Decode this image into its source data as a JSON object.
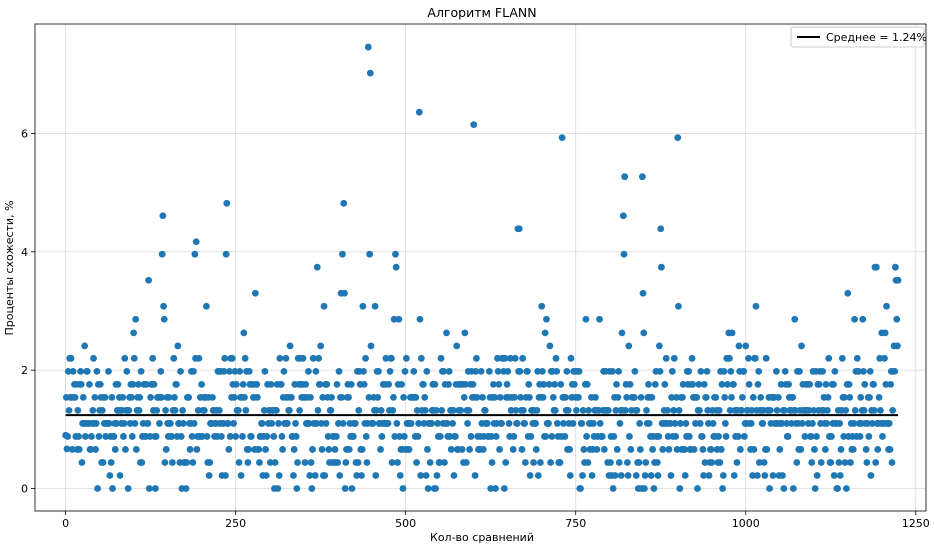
{
  "chart_data": {
    "type": "scatter",
    "title": "Алгоритм FLANN",
    "xlabel": "Кол-во сравнений",
    "ylabel": "Проценты схожести, %",
    "xlim": [
      -45,
      1265
    ],
    "ylim": [
      -0.38,
      7.85
    ],
    "xticks": [
      0,
      250,
      500,
      750,
      1000,
      1250
    ],
    "yticks": [
      0,
      2,
      4,
      6
    ],
    "grid": true,
    "legend_position": "top-right",
    "colors": {
      "points": "#1f77b4",
      "mean_line": "#000000",
      "grid": "#d9d9d9"
    },
    "mean_line": {
      "label": "Среднее = 1.24%",
      "y": 1.24,
      "x_range": [
        0,
        1224
      ]
    },
    "n_points": 1225,
    "highlight_points": [
      {
        "x": 0,
        "y": 0.9
      },
      {
        "x": 2,
        "y": 0.67
      },
      {
        "x": 4,
        "y": 1.98
      },
      {
        "x": 8,
        "y": 2.2
      },
      {
        "x": 28,
        "y": 2.41
      },
      {
        "x": 47,
        "y": 0.0
      },
      {
        "x": 100,
        "y": 2.63
      },
      {
        "x": 103,
        "y": 2.86
      },
      {
        "x": 122,
        "y": 3.52
      },
      {
        "x": 142,
        "y": 3.96
      },
      {
        "x": 143,
        "y": 4.61
      },
      {
        "x": 144,
        "y": 3.08
      },
      {
        "x": 145,
        "y": 2.86
      },
      {
        "x": 165,
        "y": 2.41
      },
      {
        "x": 177,
        "y": 0.0
      },
      {
        "x": 190,
        "y": 3.96
      },
      {
        "x": 192,
        "y": 4.17
      },
      {
        "x": 207,
        "y": 3.08
      },
      {
        "x": 236,
        "y": 3.96
      },
      {
        "x": 237,
        "y": 4.82
      },
      {
        "x": 262,
        "y": 2.63
      },
      {
        "x": 279,
        "y": 3.3
      },
      {
        "x": 307,
        "y": 0.0
      },
      {
        "x": 312,
        "y": 0.0
      },
      {
        "x": 330,
        "y": 2.41
      },
      {
        "x": 362,
        "y": 0.0
      },
      {
        "x": 370,
        "y": 3.74
      },
      {
        "x": 375,
        "y": 2.41
      },
      {
        "x": 380,
        "y": 3.08
      },
      {
        "x": 405,
        "y": 3.3
      },
      {
        "x": 407,
        "y": 3.96
      },
      {
        "x": 409,
        "y": 4.82
      },
      {
        "x": 410,
        "y": 3.3
      },
      {
        "x": 437,
        "y": 3.08
      },
      {
        "x": 445,
        "y": 7.46
      },
      {
        "x": 447,
        "y": 3.96
      },
      {
        "x": 448,
        "y": 7.02
      },
      {
        "x": 449,
        "y": 2.41
      },
      {
        "x": 455,
        "y": 3.08
      },
      {
        "x": 483,
        "y": 2.86
      },
      {
        "x": 485,
        "y": 3.96
      },
      {
        "x": 486,
        "y": 3.74
      },
      {
        "x": 490,
        "y": 2.86
      },
      {
        "x": 520,
        "y": 6.36
      },
      {
        "x": 521,
        "y": 2.86
      },
      {
        "x": 560,
        "y": 2.63
      },
      {
        "x": 575,
        "y": 2.41
      },
      {
        "x": 587,
        "y": 2.63
      },
      {
        "x": 600,
        "y": 6.15
      },
      {
        "x": 625,
        "y": 0.0
      },
      {
        "x": 665,
        "y": 4.39
      },
      {
        "x": 667,
        "y": 4.39
      },
      {
        "x": 700,
        "y": 3.08
      },
      {
        "x": 705,
        "y": 2.63
      },
      {
        "x": 707,
        "y": 2.86
      },
      {
        "x": 712,
        "y": 2.41
      },
      {
        "x": 730,
        "y": 5.93
      },
      {
        "x": 765,
        "y": 2.86
      },
      {
        "x": 785,
        "y": 2.86
      },
      {
        "x": 818,
        "y": 2.63
      },
      {
        "x": 820,
        "y": 4.61
      },
      {
        "x": 821,
        "y": 3.96
      },
      {
        "x": 822,
        "y": 5.27
      },
      {
        "x": 828,
        "y": 2.41
      },
      {
        "x": 848,
        "y": 5.27
      },
      {
        "x": 849,
        "y": 3.3
      },
      {
        "x": 850,
        "y": 2.63
      },
      {
        "x": 865,
        "y": 0.0
      },
      {
        "x": 873,
        "y": 2.41
      },
      {
        "x": 875,
        "y": 4.39
      },
      {
        "x": 876,
        "y": 3.74
      },
      {
        "x": 900,
        "y": 5.93
      },
      {
        "x": 901,
        "y": 3.08
      },
      {
        "x": 903,
        "y": 0.0
      },
      {
        "x": 975,
        "y": 2.63
      },
      {
        "x": 980,
        "y": 2.63
      },
      {
        "x": 990,
        "y": 2.41
      },
      {
        "x": 1000,
        "y": 2.41
      },
      {
        "x": 1015,
        "y": 3.08
      },
      {
        "x": 1035,
        "y": 0.0
      },
      {
        "x": 1070,
        "y": 0.0
      },
      {
        "x": 1072,
        "y": 2.86
      },
      {
        "x": 1082,
        "y": 2.41
      },
      {
        "x": 1122,
        "y": 2.2
      },
      {
        "x": 1135,
        "y": 0.0
      },
      {
        "x": 1148,
        "y": 0.0
      },
      {
        "x": 1150,
        "y": 3.3
      },
      {
        "x": 1160,
        "y": 2.86
      },
      {
        "x": 1172,
        "y": 2.86
      },
      {
        "x": 1190,
        "y": 3.74
      },
      {
        "x": 1192,
        "y": 3.74
      },
      {
        "x": 1200,
        "y": 2.63
      },
      {
        "x": 1205,
        "y": 2.63
      },
      {
        "x": 1207,
        "y": 3.08
      },
      {
        "x": 1218,
        "y": 2.41
      },
      {
        "x": 1220,
        "y": 3.74
      },
      {
        "x": 1221,
        "y": 3.52
      },
      {
        "x": 1222,
        "y": 2.86
      },
      {
        "x": 1223,
        "y": 2.41
      },
      {
        "x": 1224,
        "y": 3.52
      },
      {
        "x": 1225,
        "y": 1.54
      }
    ],
    "bulk_value_levels": [
      0.0,
      0.22,
      0.44,
      0.66,
      0.88,
      1.1,
      1.32,
      1.54,
      1.76,
      1.98,
      2.2
    ],
    "bulk_value_weights": [
      2,
      5,
      7,
      9,
      12,
      15,
      14,
      13,
      10,
      8,
      5
    ]
  }
}
